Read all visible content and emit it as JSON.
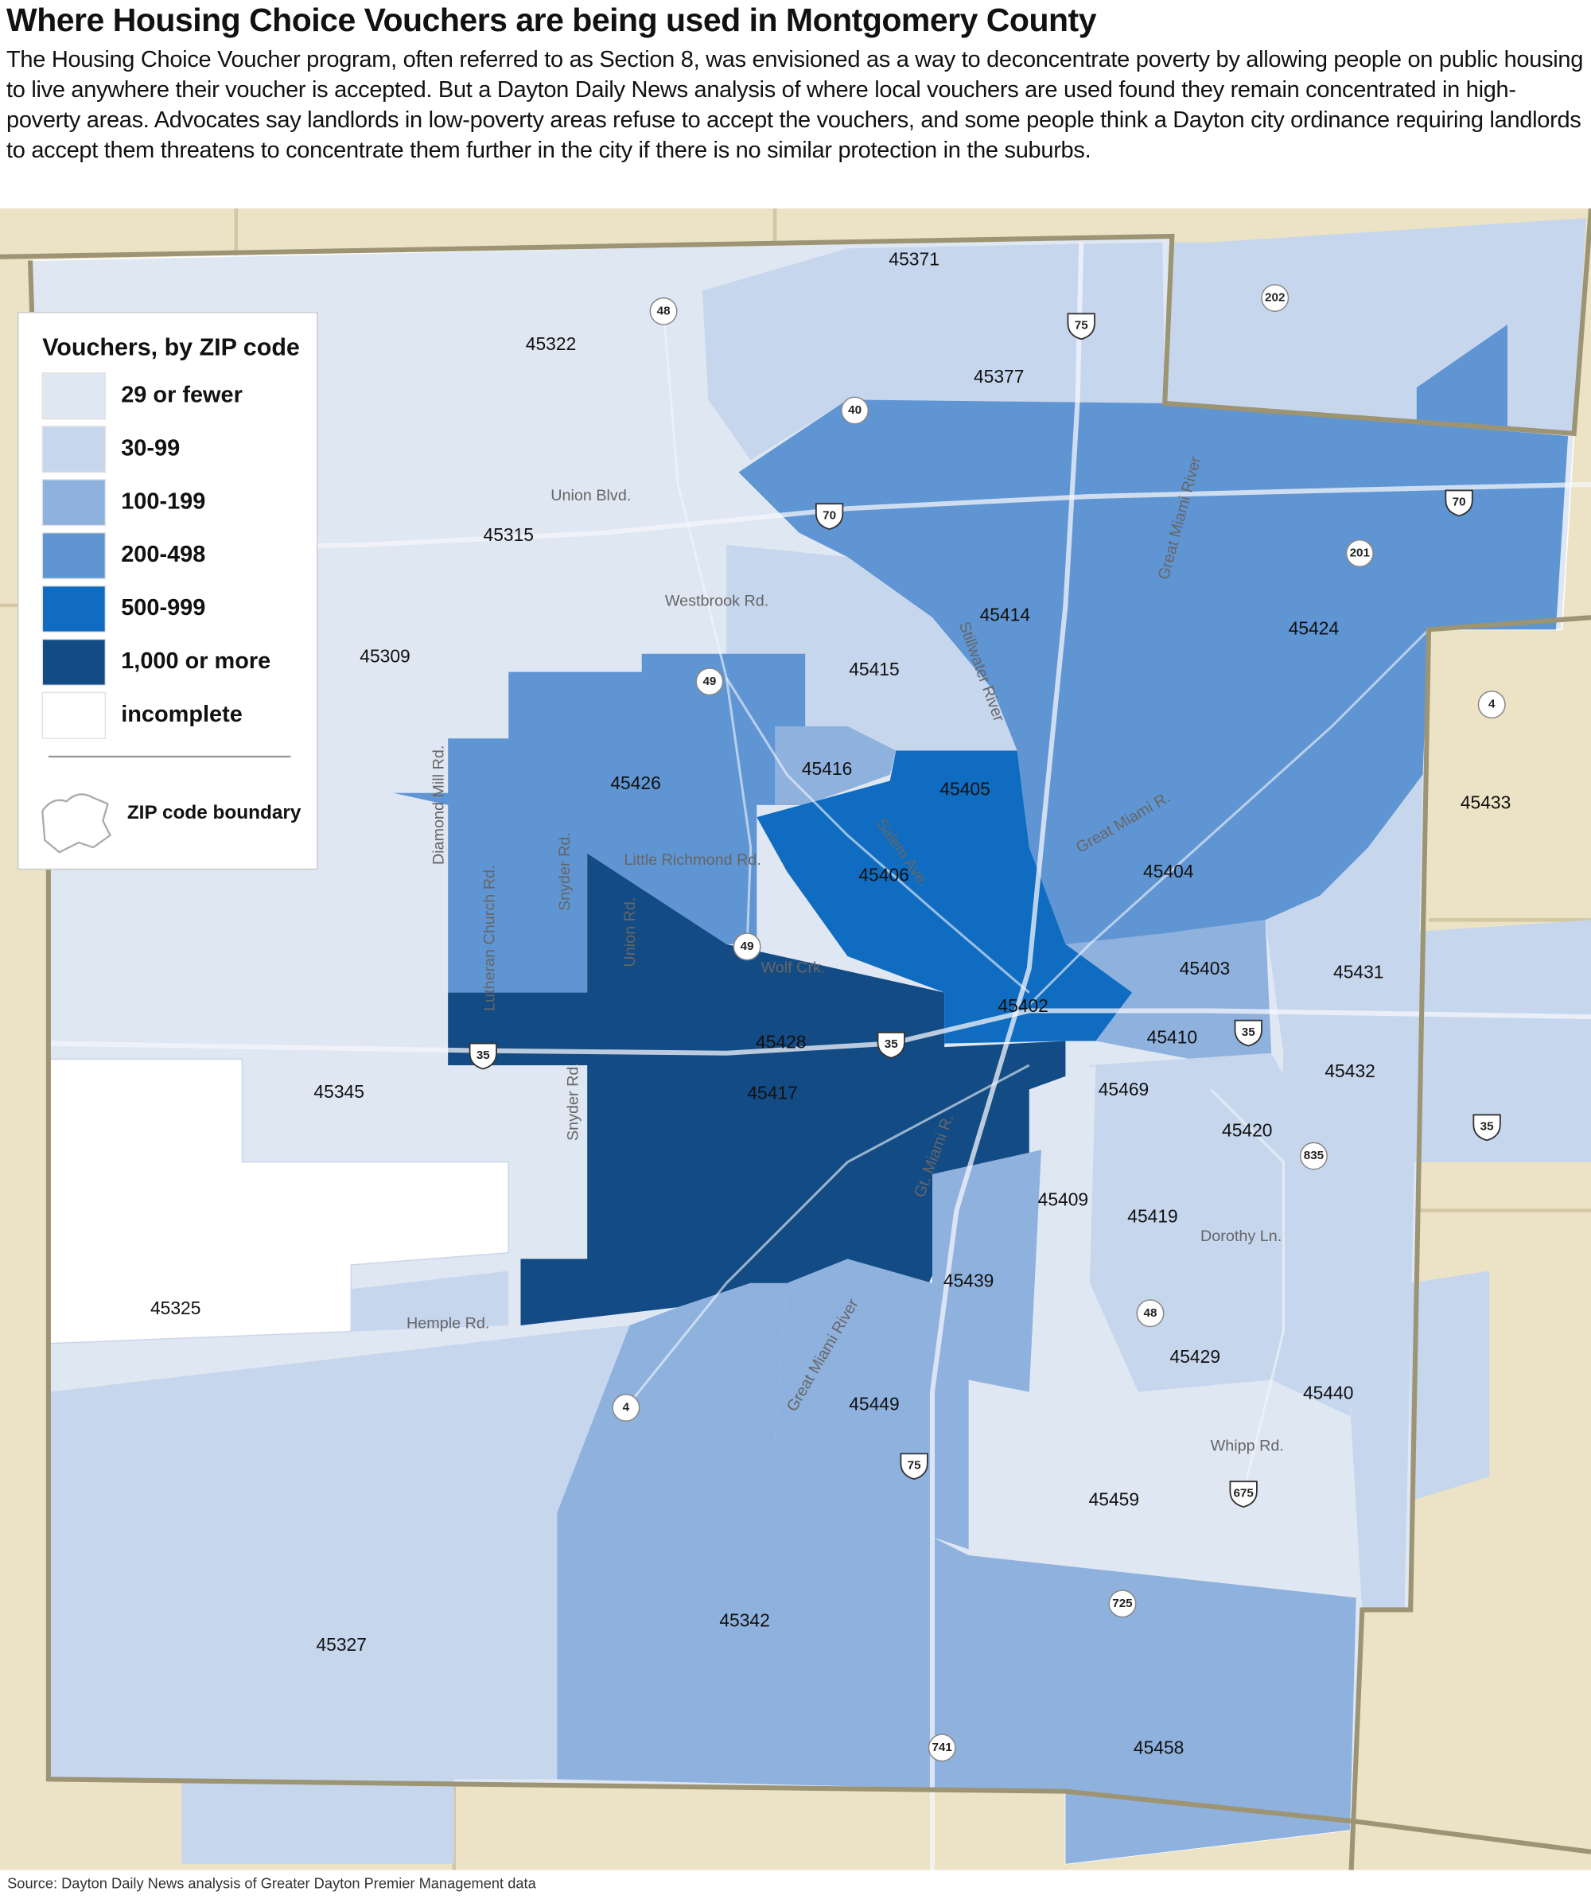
{
  "title": "Where Housing Choice Vouchers are being used in Montgomery County",
  "description": "The Housing Choice Voucher program, often referred to as Section 8, was envisioned as a way to deconcentrate poverty by allowing people on public housing to live anywhere their voucher is accepted. But a Dayton Daily News analysis of where local vouchers are used found they remain concentrated in high-poverty areas. Advocates say landlords in low-poverty areas refuse to accept the vouchers, and some people think a Dayton city ordinance requiring landlords to accept them threatens to concentrate them further in the city if there is no similar protection in the suburbs.",
  "legend": {
    "title": "Vouchers, by ZIP code",
    "items": [
      {
        "label": "29 or fewer",
        "color": "#dfe7f3"
      },
      {
        "label": "30-99",
        "color": "#c6d6ed"
      },
      {
        "label": "100-199",
        "color": "#8fb1de"
      },
      {
        "label": "200-498",
        "color": "#5f95d2"
      },
      {
        "label": "500-999",
        "color": "#0f6cc0"
      },
      {
        "label": "1,000 or more",
        "color": "#134b85"
      },
      {
        "label": "incomplete",
        "color": "#ffffff"
      }
    ],
    "boundary_label": "ZIP code boundary"
  },
  "zip_codes": [
    "45371",
    "45322",
    "45377",
    "45315",
    "45414",
    "45424",
    "45309",
    "45415",
    "45426",
    "45416",
    "45405",
    "45406",
    "45404",
    "45433",
    "45403",
    "45431",
    "45402",
    "45410",
    "45432",
    "45428",
    "45417",
    "45469",
    "45345",
    "45420",
    "45409",
    "45419",
    "45439",
    "45325",
    "45429",
    "45440",
    "45449",
    "45459",
    "45342",
    "45327",
    "45458"
  ],
  "road_labels": [
    "Union Blvd.",
    "Westbrook Rd.",
    "Stillwater River",
    "Great Miami River",
    "Great Miami R.",
    "Salem Ave.",
    "Little Richmond Rd.",
    "Diamond Mill Rd.",
    "Snyder Rd.",
    "Lutheran Church Rd.",
    "Union Rd.",
    "Wolf Crk.",
    "Snyder Rd.",
    "Gt. Miami R.",
    "Great Miami River",
    "Hemple Rd.",
    "Dorothy Ln.",
    "Whipp Rd."
  ],
  "route_shields": [
    "48",
    "75",
    "202",
    "40",
    "70",
    "70",
    "201",
    "4",
    "49",
    "49",
    "35",
    "35",
    "35",
    "35",
    "835",
    "48",
    "4",
    "75",
    "675",
    "725",
    "741"
  ],
  "source": "Source: Dayton Daily News analysis of Greater Dayton Premier Management data"
}
